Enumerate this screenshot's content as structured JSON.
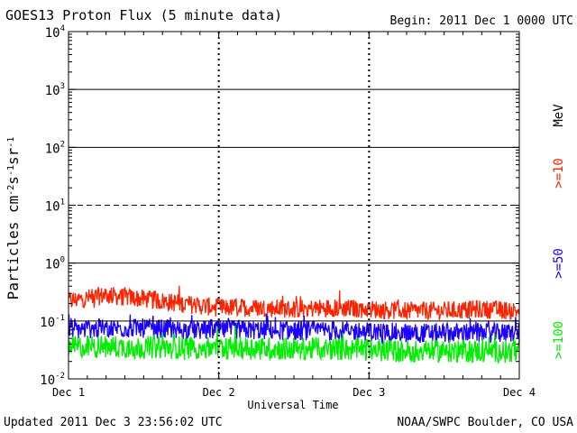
{
  "header": {
    "title": "GOES13 Proton Flux (5 minute data)",
    "begin": "Begin: 2011 Dec 1 0000 UTC"
  },
  "footer": {
    "updated": "Updated 2011 Dec  3 23:56:02 UTC",
    "source": "NOAA/SWPC Boulder, CO USA"
  },
  "colors": {
    "p10": "#ff2200",
    "p50": "#1a00ff",
    "p100": "#00ee00",
    "axis": "#000000"
  },
  "chart_data": {
    "type": "line",
    "title": "GOES13 Proton Flux (5 minute data)",
    "xlabel": "Universal Time",
    "ylabel": "Particles cm⁻²s⁻¹sr⁻¹",
    "y_scale": "log",
    "ylim": [
      0.01,
      10000
    ],
    "xlim": [
      "2011-12-01 00:00",
      "2011-12-04 00:00"
    ],
    "x_ticks": [
      "Dec 1",
      "Dec 2",
      "Dec 3",
      "Dec 4"
    ],
    "y_ticks": [
      {
        "value": 0.01,
        "base": "10",
        "exp": "-2"
      },
      {
        "value": 0.1,
        "base": "10",
        "exp": "-1"
      },
      {
        "value": 1,
        "base": "10",
        "exp": "0"
      },
      {
        "value": 10,
        "base": "10",
        "exp": "1"
      },
      {
        "value": 100,
        "base": "10",
        "exp": "2"
      },
      {
        "value": 1000,
        "base": "10",
        "exp": "3"
      },
      {
        "value": 10000,
        "base": "10",
        "exp": "4"
      }
    ],
    "reference_lines": [
      {
        "value": 1000,
        "style": "solid"
      },
      {
        "value": 100,
        "style": "solid"
      },
      {
        "value": 10,
        "style": "dashed"
      },
      {
        "value": 1,
        "style": "solid"
      },
      {
        "value": 0.1,
        "style": "solid"
      }
    ],
    "legend": {
      "unit": "MeV",
      "entries": [
        {
          "label": ">=10",
          "series": "p10"
        },
        {
          "label": ">=50",
          "series": "p50"
        },
        {
          "label": ">=100",
          "series": "p100"
        }
      ]
    },
    "series": [
      {
        "key": "p10",
        "name": ">=10",
        "color": "#ff2200",
        "x": [
          "2011-12-01 00:00",
          "2011-12-01 06:00",
          "2011-12-01 12:00",
          "2011-12-01 18:00",
          "2011-12-02 00:00",
          "2011-12-02 06:00",
          "2011-12-02 12:00",
          "2011-12-02 18:00",
          "2011-12-03 00:00",
          "2011-12-03 06:00",
          "2011-12-03 12:00",
          "2011-12-03 18:00",
          "2011-12-04 00:00"
        ],
        "values": [
          0.22,
          0.28,
          0.24,
          0.2,
          0.17,
          0.17,
          0.16,
          0.17,
          0.16,
          0.15,
          0.15,
          0.16,
          0.15
        ]
      },
      {
        "key": "p50",
        "name": ">=50",
        "color": "#1a00ff",
        "x": [
          "2011-12-01 00:00",
          "2011-12-01 06:00",
          "2011-12-01 12:00",
          "2011-12-01 18:00",
          "2011-12-02 00:00",
          "2011-12-02 06:00",
          "2011-12-02 12:00",
          "2011-12-02 18:00",
          "2011-12-03 00:00",
          "2011-12-03 06:00",
          "2011-12-03 12:00",
          "2011-12-03 18:00",
          "2011-12-04 00:00"
        ],
        "values": [
          0.07,
          0.075,
          0.075,
          0.07,
          0.07,
          0.07,
          0.068,
          0.068,
          0.065,
          0.062,
          0.062,
          0.062,
          0.062
        ]
      },
      {
        "key": "p100",
        "name": ">=100",
        "color": "#00ee00",
        "x": [
          "2011-12-01 00:00",
          "2011-12-01 06:00",
          "2011-12-01 12:00",
          "2011-12-01 18:00",
          "2011-12-02 00:00",
          "2011-12-02 06:00",
          "2011-12-02 12:00",
          "2011-12-02 18:00",
          "2011-12-03 00:00",
          "2011-12-03 06:00",
          "2011-12-03 12:00",
          "2011-12-03 18:00",
          "2011-12-04 00:00"
        ],
        "values": [
          0.035,
          0.036,
          0.035,
          0.035,
          0.034,
          0.034,
          0.033,
          0.033,
          0.032,
          0.03,
          0.03,
          0.03,
          0.03
        ]
      }
    ],
    "grid": true
  }
}
